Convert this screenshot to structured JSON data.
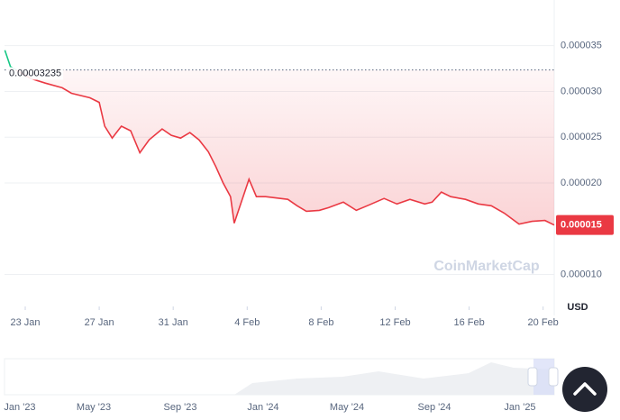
{
  "chart_data": {
    "type": "line",
    "x": [
      -0.1,
      0.2,
      1.3,
      2.1,
      3.0,
      3.5,
      4.5,
      5.0,
      5.3,
      5.7,
      6.2,
      6.7,
      7.2,
      7.7,
      8.4,
      8.9,
      9.4,
      9.9,
      10.4,
      10.9,
      11.3,
      11.7,
      12.1,
      12.3,
      12.7,
      13.1,
      13.5,
      14.0,
      14.8,
      15.2,
      15.7,
      16.2,
      16.9,
      17.4,
      18.2,
      18.9,
      19.6,
      20.4,
      21.1,
      21.8,
      22.6,
      23.0,
      23.5,
      24.0,
      24.8,
      25.5,
      26.2,
      26.9,
      27.7,
      28.4,
      29.1,
      29.6
    ],
    "series": [
      {
        "color": "#ea3943",
        "above_color": "#16c784",
        "values": [
          3.45e-05,
          3.27e-05,
          3.14e-05,
          3.09e-05,
          3.04e-05,
          2.98e-05,
          2.93e-05,
          2.88e-05,
          2.62e-05,
          2.49e-05,
          2.62e-05,
          2.57e-05,
          2.33e-05,
          2.47e-05,
          2.59e-05,
          2.52e-05,
          2.49e-05,
          2.55e-05,
          2.47e-05,
          2.34e-05,
          2.18e-05,
          2e-05,
          1.85e-05,
          1.56e-05,
          1.8e-05,
          2.04e-05,
          1.85e-05,
          1.85e-05,
          1.83e-05,
          1.82e-05,
          1.75e-05,
          1.69e-05,
          1.7e-05,
          1.73e-05,
          1.79e-05,
          1.7e-05,
          1.76e-05,
          1.83e-05,
          1.77e-05,
          1.82e-05,
          1.77e-05,
          1.79e-05,
          1.9e-05,
          1.85e-05,
          1.82e-05,
          1.77e-05,
          1.75e-05,
          1.67e-05,
          1.55e-05,
          1.58e-05,
          1.59e-05,
          1.54e-05
        ]
      }
    ],
    "xlim": [
      -0.12,
      29.6
    ],
    "xticks": [
      {
        "value": 1,
        "label": "23 Jan"
      },
      {
        "value": 5,
        "label": "27 Jan"
      },
      {
        "value": 9,
        "label": "31 Jan"
      },
      {
        "value": 13,
        "label": "4 Feb"
      },
      {
        "value": 17,
        "label": "8 Feb"
      },
      {
        "value": 21,
        "label": "12 Feb"
      },
      {
        "value": 25,
        "label": "16 Feb"
      },
      {
        "value": 29,
        "label": "20 Feb"
      }
    ],
    "ylim": [
      6.5e-06,
      3.95e-05
    ],
    "yticks": [
      {
        "value": 1e-05,
        "label": "0.000010"
      },
      {
        "value": 2e-05,
        "label": "0.000020"
      },
      2.5e-05,
      {
        "value": 3e-05,
        "label": "0.000030"
      },
      3.5e-05
    ],
    "y_unit": "USD",
    "grid": true,
    "reference_line": 3.235e-05,
    "current_price": {
      "value": 1.54e-05,
      "label": "0.000015"
    },
    "watermark": "CoinMarketCap",
    "navigator_labels": [
      "Jan '23",
      "May '23",
      "Sep '23",
      "Jan '24",
      "May '24",
      "Sep '24",
      "Jan '25"
    ]
  }
}
